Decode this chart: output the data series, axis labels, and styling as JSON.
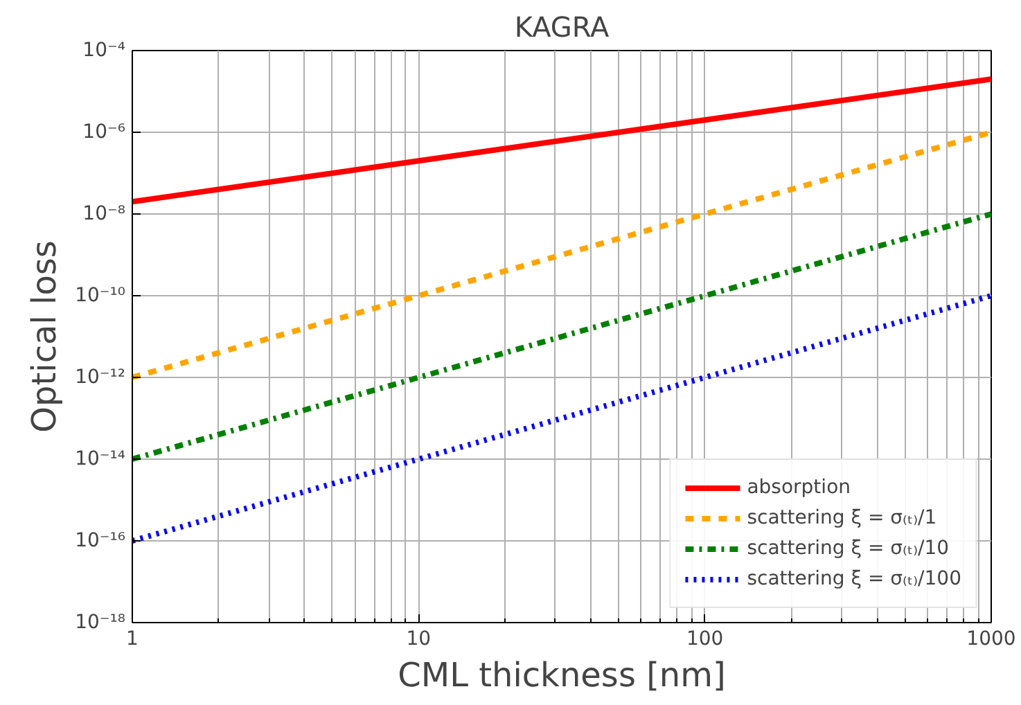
{
  "chart_data": {
    "type": "line",
    "title": "KAGRA",
    "xlabel": "CML thickness [nm]",
    "ylabel": "Optical loss",
    "x": [
      1,
      10,
      100,
      1000
    ],
    "series": [
      {
        "name": "absorption",
        "color": "#ff0000",
        "line_style": "solid",
        "values": [
          2e-08,
          2e-07,
          2e-06,
          2e-05
        ]
      },
      {
        "name": "scattering ξ = σ₍ₜ₎/1",
        "color": "#ffa500",
        "line_style": "dashed",
        "values": [
          1e-12,
          1e-10,
          1e-08,
          1e-06
        ]
      },
      {
        "name": "scattering ξ = σ₍ₜ₎/10",
        "color": "#008000",
        "line_style": "dashdot",
        "values": [
          1e-14,
          1e-12,
          1e-10,
          1e-08
        ]
      },
      {
        "name": "scattering ξ = σ₍ₜ₎/100",
        "color": "#0000ff",
        "line_style": "dotted",
        "values": [
          1e-16,
          1e-14,
          1e-12,
          1e-10
        ]
      }
    ],
    "log": "xy",
    "xlim": [
      1,
      1000
    ],
    "ylim": [
      1e-18,
      0.0001
    ],
    "xticks": [
      1,
      10,
      100,
      1000
    ],
    "yticks": [
      {
        "value": 1e-18,
        "label": "10⁻¹⁸"
      },
      {
        "value": 1e-16,
        "label": "10⁻¹⁶"
      },
      {
        "value": 1e-14,
        "label": "10⁻¹⁴"
      },
      {
        "value": 1e-12,
        "label": "10⁻¹²"
      },
      {
        "value": 1e-10,
        "label": "10⁻¹⁰"
      },
      {
        "value": 1e-08,
        "label": "10⁻⁸"
      },
      {
        "value": 1e-06,
        "label": "10⁻⁶"
      },
      {
        "value": 0.0001,
        "label": "10⁻⁴"
      }
    ],
    "grid": true,
    "legend": "bottom right",
    "marker": "none"
  }
}
